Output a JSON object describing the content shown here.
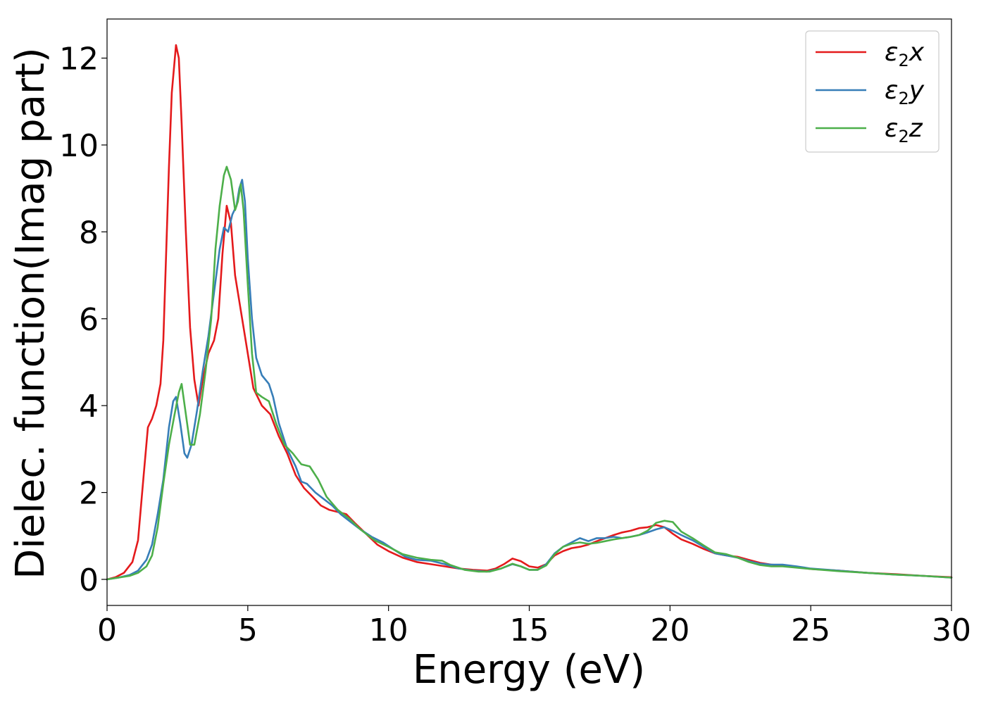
{
  "chart_data": {
    "type": "line",
    "xlabel": "Energy (eV)",
    "ylabel": "Dielec. function(Imag part)",
    "xlim": [
      0,
      30
    ],
    "ylim": [
      -0.6,
      12.9
    ],
    "xticks": [
      0,
      5,
      10,
      15,
      20,
      25,
      30
    ],
    "yticks": [
      0,
      2,
      4,
      6,
      8,
      10,
      12
    ],
    "grid": false,
    "legend_position": "top-right",
    "series": [
      {
        "name": "ε2x",
        "legend_base": "ε",
        "legend_sub": "2",
        "legend_suffix": "x",
        "color": "#e41a1c",
        "points": [
          [
            0,
            0
          ],
          [
            0.3,
            0.05
          ],
          [
            0.6,
            0.15
          ],
          [
            0.9,
            0.4
          ],
          [
            1.1,
            0.9
          ],
          [
            1.3,
            2.4
          ],
          [
            1.45,
            3.5
          ],
          [
            1.6,
            3.7
          ],
          [
            1.75,
            4.0
          ],
          [
            1.9,
            4.5
          ],
          [
            2.0,
            5.5
          ],
          [
            2.1,
            7.5
          ],
          [
            2.2,
            9.5
          ],
          [
            2.3,
            11.2
          ],
          [
            2.45,
            12.3
          ],
          [
            2.55,
            12.0
          ],
          [
            2.65,
            10.5
          ],
          [
            2.8,
            8.0
          ],
          [
            2.95,
            5.8
          ],
          [
            3.1,
            4.6
          ],
          [
            3.25,
            4.0
          ],
          [
            3.4,
            4.6
          ],
          [
            3.6,
            5.2
          ],
          [
            3.8,
            5.5
          ],
          [
            3.95,
            6.0
          ],
          [
            4.1,
            7.5
          ],
          [
            4.25,
            8.6
          ],
          [
            4.4,
            8.2
          ],
          [
            4.55,
            7.0
          ],
          [
            4.7,
            6.4
          ],
          [
            4.85,
            5.8
          ],
          [
            5.0,
            5.2
          ],
          [
            5.2,
            4.4
          ],
          [
            5.5,
            4.0
          ],
          [
            5.8,
            3.8
          ],
          [
            6.1,
            3.3
          ],
          [
            6.4,
            2.9
          ],
          [
            6.7,
            2.4
          ],
          [
            7.0,
            2.1
          ],
          [
            7.3,
            1.9
          ],
          [
            7.6,
            1.7
          ],
          [
            7.9,
            1.6
          ],
          [
            8.2,
            1.55
          ],
          [
            8.5,
            1.5
          ],
          [
            8.8,
            1.3
          ],
          [
            9.2,
            1.05
          ],
          [
            9.6,
            0.8
          ],
          [
            10.0,
            0.65
          ],
          [
            10.5,
            0.5
          ],
          [
            11.0,
            0.4
          ],
          [
            11.5,
            0.35
          ],
          [
            12.0,
            0.3
          ],
          [
            12.5,
            0.25
          ],
          [
            13.0,
            0.22
          ],
          [
            13.5,
            0.2
          ],
          [
            13.8,
            0.25
          ],
          [
            14.1,
            0.35
          ],
          [
            14.4,
            0.48
          ],
          [
            14.7,
            0.42
          ],
          [
            15.0,
            0.3
          ],
          [
            15.3,
            0.27
          ],
          [
            15.6,
            0.35
          ],
          [
            15.9,
            0.55
          ],
          [
            16.2,
            0.65
          ],
          [
            16.5,
            0.72
          ],
          [
            16.8,
            0.75
          ],
          [
            17.1,
            0.8
          ],
          [
            17.4,
            0.88
          ],
          [
            17.7,
            0.95
          ],
          [
            18.0,
            1.02
          ],
          [
            18.3,
            1.08
          ],
          [
            18.6,
            1.12
          ],
          [
            18.9,
            1.18
          ],
          [
            19.2,
            1.2
          ],
          [
            19.5,
            1.25
          ],
          [
            19.8,
            1.2
          ],
          [
            20.1,
            1.05
          ],
          [
            20.4,
            0.92
          ],
          [
            20.8,
            0.82
          ],
          [
            21.2,
            0.7
          ],
          [
            21.6,
            0.6
          ],
          [
            22.0,
            0.55
          ],
          [
            22.4,
            0.52
          ],
          [
            22.8,
            0.45
          ],
          [
            23.2,
            0.38
          ],
          [
            23.6,
            0.34
          ],
          [
            24.0,
            0.32
          ],
          [
            24.5,
            0.28
          ],
          [
            25.0,
            0.24
          ],
          [
            26.0,
            0.2
          ],
          [
            27.0,
            0.15
          ],
          [
            28.0,
            0.12
          ],
          [
            29.0,
            0.08
          ],
          [
            30.0,
            0.05
          ]
        ]
      },
      {
        "name": "ε2y",
        "legend_base": "ε",
        "legend_sub": "2",
        "legend_suffix": "y",
        "color": "#377eb8",
        "points": [
          [
            0,
            0
          ],
          [
            0.4,
            0.04
          ],
          [
            0.8,
            0.1
          ],
          [
            1.1,
            0.2
          ],
          [
            1.4,
            0.45
          ],
          [
            1.6,
            0.8
          ],
          [
            1.8,
            1.5
          ],
          [
            2.0,
            2.3
          ],
          [
            2.2,
            3.5
          ],
          [
            2.35,
            4.1
          ],
          [
            2.45,
            4.2
          ],
          [
            2.6,
            3.6
          ],
          [
            2.75,
            2.9
          ],
          [
            2.85,
            2.8
          ],
          [
            3.0,
            3.1
          ],
          [
            3.2,
            3.9
          ],
          [
            3.4,
            4.8
          ],
          [
            3.6,
            5.6
          ],
          [
            3.8,
            6.6
          ],
          [
            4.0,
            7.6
          ],
          [
            4.15,
            8.1
          ],
          [
            4.3,
            8.0
          ],
          [
            4.45,
            8.4
          ],
          [
            4.6,
            8.6
          ],
          [
            4.7,
            9.0
          ],
          [
            4.8,
            9.2
          ],
          [
            4.9,
            8.7
          ],
          [
            5.0,
            7.4
          ],
          [
            5.15,
            6.0
          ],
          [
            5.3,
            5.1
          ],
          [
            5.5,
            4.7
          ],
          [
            5.75,
            4.5
          ],
          [
            5.9,
            4.2
          ],
          [
            6.1,
            3.6
          ],
          [
            6.4,
            3.0
          ],
          [
            6.7,
            2.6
          ],
          [
            6.9,
            2.25
          ],
          [
            7.1,
            2.2
          ],
          [
            7.4,
            2.0
          ],
          [
            7.7,
            1.85
          ],
          [
            8.0,
            1.7
          ],
          [
            8.3,
            1.5
          ],
          [
            8.6,
            1.35
          ],
          [
            9.0,
            1.15
          ],
          [
            9.4,
            0.98
          ],
          [
            9.8,
            0.85
          ],
          [
            10.2,
            0.68
          ],
          [
            10.6,
            0.52
          ],
          [
            11.0,
            0.45
          ],
          [
            11.5,
            0.43
          ],
          [
            12.0,
            0.35
          ],
          [
            12.5,
            0.25
          ],
          [
            13.0,
            0.2
          ],
          [
            13.5,
            0.18
          ],
          [
            14.0,
            0.25
          ],
          [
            14.4,
            0.35
          ],
          [
            14.7,
            0.3
          ],
          [
            15.0,
            0.22
          ],
          [
            15.3,
            0.22
          ],
          [
            15.6,
            0.35
          ],
          [
            15.9,
            0.6
          ],
          [
            16.2,
            0.75
          ],
          [
            16.5,
            0.85
          ],
          [
            16.8,
            0.95
          ],
          [
            17.1,
            0.88
          ],
          [
            17.4,
            0.95
          ],
          [
            17.7,
            0.95
          ],
          [
            18.0,
            0.98
          ],
          [
            18.3,
            0.95
          ],
          [
            18.6,
            0.98
          ],
          [
            18.9,
            1.02
          ],
          [
            19.2,
            1.08
          ],
          [
            19.5,
            1.15
          ],
          [
            19.8,
            1.2
          ],
          [
            20.1,
            1.12
          ],
          [
            20.4,
            1.02
          ],
          [
            20.8,
            0.9
          ],
          [
            21.2,
            0.75
          ],
          [
            21.6,
            0.6
          ],
          [
            22.0,
            0.55
          ],
          [
            22.4,
            0.5
          ],
          [
            22.8,
            0.42
          ],
          [
            23.2,
            0.36
          ],
          [
            23.6,
            0.34
          ],
          [
            24.0,
            0.34
          ],
          [
            24.5,
            0.3
          ],
          [
            25.0,
            0.25
          ],
          [
            26.0,
            0.2
          ],
          [
            27.0,
            0.15
          ],
          [
            28.0,
            0.11
          ],
          [
            29.0,
            0.08
          ],
          [
            30.0,
            0.04
          ]
        ]
      },
      {
        "name": "ε2z",
        "legend_base": "ε",
        "legend_sub": "2",
        "legend_suffix": "z",
        "color": "#4daf4a",
        "points": [
          [
            0,
            0
          ],
          [
            0.4,
            0.04
          ],
          [
            0.8,
            0.08
          ],
          [
            1.1,
            0.15
          ],
          [
            1.4,
            0.3
          ],
          [
            1.6,
            0.55
          ],
          [
            1.8,
            1.2
          ],
          [
            2.0,
            2.2
          ],
          [
            2.2,
            3.1
          ],
          [
            2.4,
            3.8
          ],
          [
            2.55,
            4.3
          ],
          [
            2.65,
            4.5
          ],
          [
            2.8,
            3.8
          ],
          [
            2.95,
            3.1
          ],
          [
            3.1,
            3.1
          ],
          [
            3.3,
            3.8
          ],
          [
            3.5,
            4.8
          ],
          [
            3.7,
            6.0
          ],
          [
            3.85,
            7.6
          ],
          [
            4.0,
            8.6
          ],
          [
            4.15,
            9.3
          ],
          [
            4.25,
            9.5
          ],
          [
            4.4,
            9.2
          ],
          [
            4.55,
            8.5
          ],
          [
            4.65,
            8.7
          ],
          [
            4.75,
            9.1
          ],
          [
            4.85,
            8.5
          ],
          [
            5.0,
            6.8
          ],
          [
            5.15,
            5.2
          ],
          [
            5.3,
            4.3
          ],
          [
            5.5,
            4.2
          ],
          [
            5.75,
            4.1
          ],
          [
            6.0,
            3.6
          ],
          [
            6.3,
            3.1
          ],
          [
            6.6,
            2.9
          ],
          [
            6.9,
            2.65
          ],
          [
            7.2,
            2.6
          ],
          [
            7.5,
            2.3
          ],
          [
            7.8,
            1.9
          ],
          [
            8.2,
            1.6
          ],
          [
            8.6,
            1.4
          ],
          [
            9.0,
            1.15
          ],
          [
            9.5,
            0.9
          ],
          [
            10.0,
            0.75
          ],
          [
            10.5,
            0.58
          ],
          [
            11.0,
            0.5
          ],
          [
            11.5,
            0.45
          ],
          [
            11.9,
            0.43
          ],
          [
            12.2,
            0.33
          ],
          [
            12.7,
            0.22
          ],
          [
            13.2,
            0.18
          ],
          [
            13.6,
            0.18
          ],
          [
            14.0,
            0.25
          ],
          [
            14.4,
            0.36
          ],
          [
            14.7,
            0.3
          ],
          [
            15.0,
            0.22
          ],
          [
            15.3,
            0.22
          ],
          [
            15.6,
            0.32
          ],
          [
            15.9,
            0.58
          ],
          [
            16.2,
            0.75
          ],
          [
            16.5,
            0.82
          ],
          [
            16.8,
            0.85
          ],
          [
            17.1,
            0.82
          ],
          [
            17.4,
            0.84
          ],
          [
            17.7,
            0.88
          ],
          [
            18.0,
            0.92
          ],
          [
            18.3,
            0.95
          ],
          [
            18.6,
            0.98
          ],
          [
            18.9,
            1.02
          ],
          [
            19.2,
            1.12
          ],
          [
            19.5,
            1.3
          ],
          [
            19.8,
            1.35
          ],
          [
            20.1,
            1.32
          ],
          [
            20.4,
            1.1
          ],
          [
            20.8,
            0.95
          ],
          [
            21.2,
            0.78
          ],
          [
            21.6,
            0.62
          ],
          [
            22.0,
            0.58
          ],
          [
            22.4,
            0.5
          ],
          [
            22.8,
            0.4
          ],
          [
            23.2,
            0.33
          ],
          [
            23.6,
            0.3
          ],
          [
            24.0,
            0.3
          ],
          [
            24.5,
            0.27
          ],
          [
            25.0,
            0.24
          ],
          [
            26.0,
            0.19
          ],
          [
            27.0,
            0.15
          ],
          [
            28.0,
            0.11
          ],
          [
            29.0,
            0.08
          ],
          [
            30.0,
            0.04
          ]
        ]
      }
    ]
  }
}
